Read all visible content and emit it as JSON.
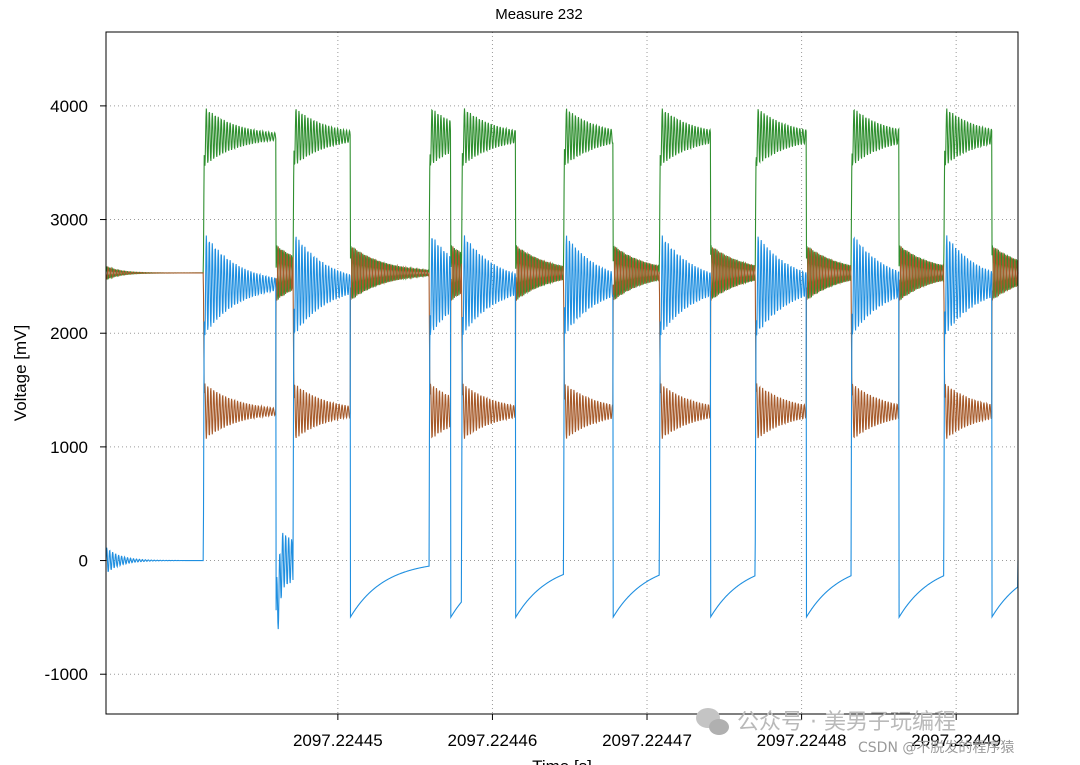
{
  "chart_data": {
    "type": "line",
    "title": "Measure 232",
    "xlabel": "Time [s]",
    "ylabel": "Voltage [mV]",
    "ylim": [
      -1350,
      4650
    ],
    "xlim": [
      2097.224435,
      2097.224494
    ],
    "yticks": [
      -1000,
      0,
      1000,
      2000,
      3000,
      4000
    ],
    "ytick_labels": [
      "-1000",
      "0",
      "1000",
      "2000",
      "3000",
      "4000"
    ],
    "xticks": [
      2097.22445,
      2097.22446,
      2097.22447,
      2097.22448,
      2097.22449
    ],
    "xtick_labels": [
      "2097.22445",
      "2097.22446",
      "2097.22447",
      "2097.22448",
      "2097.22449"
    ],
    "grid": true,
    "legend": "none",
    "edges_x": [
      2097.2244413,
      2097.224446,
      2097.2244471,
      2097.2244508,
      2097.2244559,
      2097.2244573,
      2097.224458,
      2097.2244615,
      2097.2244646,
      2097.2244678,
      2097.2244708,
      2097.2244741,
      2097.224477,
      2097.2244803,
      2097.2244832,
      2097.2244863,
      2097.2244892,
      2097.2244923,
      2097.224494
    ],
    "series": [
      {
        "color": "#2f8f2f",
        "idle": 2530,
        "high": 3730,
        "overshoot": 4000
      },
      {
        "color": "#1f8fe0",
        "idle": 0,
        "high": 2430,
        "overshoot": 2900,
        "undershoot": -500
      },
      {
        "color": "#a65a2a",
        "idle": 2530,
        "low": 1310,
        "undershoot": 1050
      }
    ]
  },
  "watermark": {
    "main": "公众号 · 美男子玩编程",
    "csdn": "CSDN @不脱发的程序猿"
  }
}
